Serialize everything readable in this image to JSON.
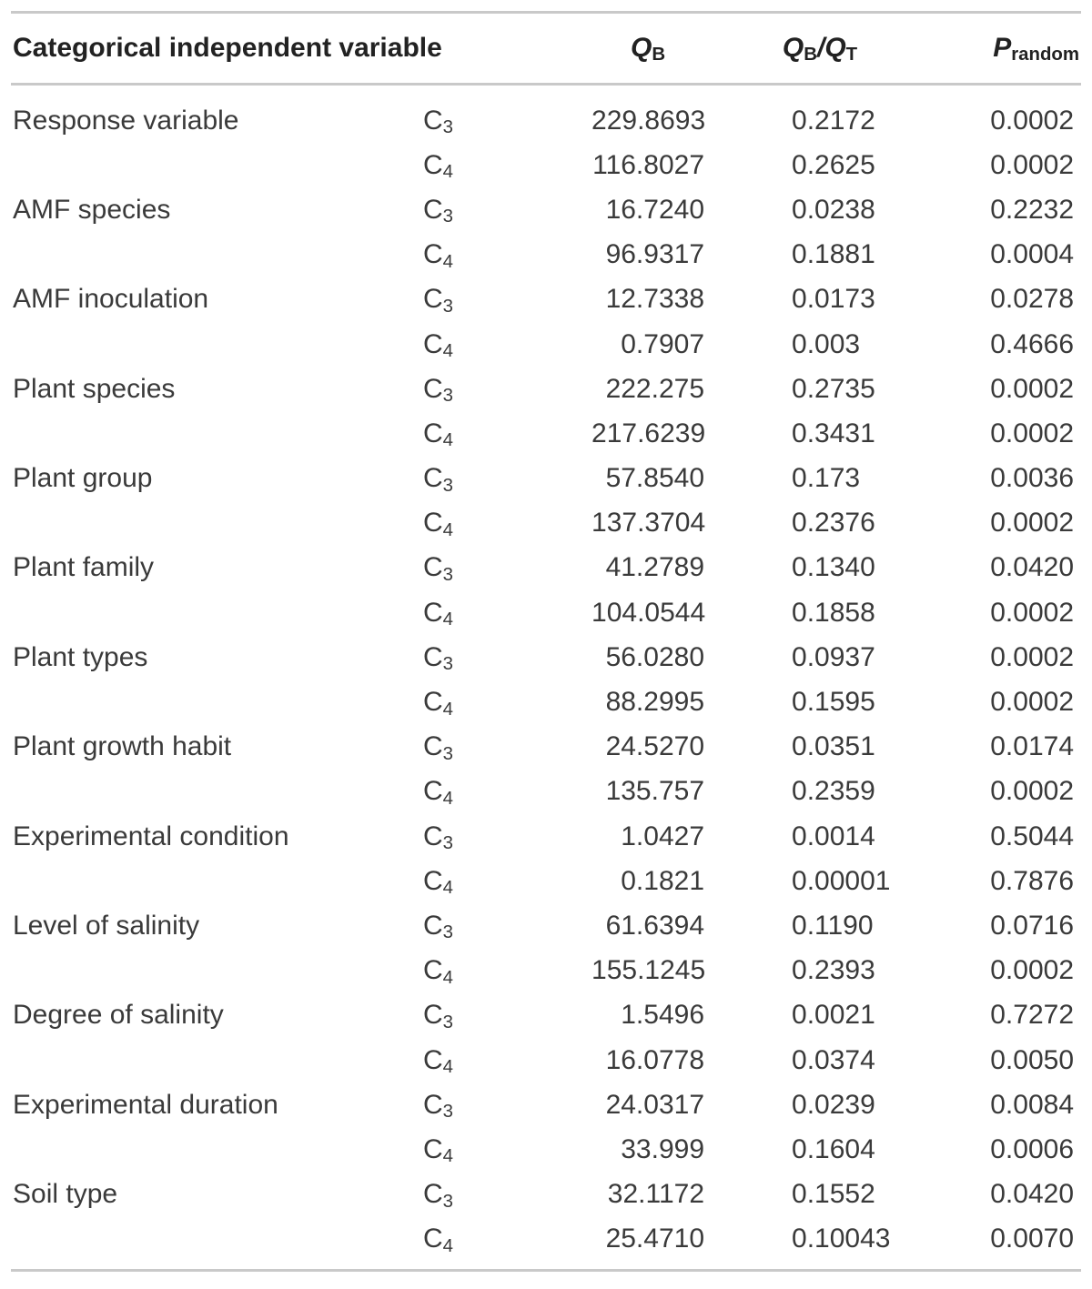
{
  "table": {
    "header": {
      "variable": "Categorical independent variable",
      "qb": {
        "base": "Q",
        "sub": "B"
      },
      "qb_qt": {
        "base1": "Q",
        "sub1": "B",
        "sep": "/",
        "base2": "Q",
        "sub2": "T"
      },
      "p": {
        "base": "P",
        "sub": "random"
      }
    },
    "rows": [
      {
        "variable": "Response variable",
        "group_base": "C",
        "group_sub": "3",
        "qb": "229.8693",
        "qb_qt": "0.2172",
        "p_random": "0.0002"
      },
      {
        "variable": "",
        "group_base": "C",
        "group_sub": "4",
        "qb": "116.8027",
        "qb_qt": "0.2625",
        "p_random": "0.0002"
      },
      {
        "variable": "AMF species",
        "group_base": "C",
        "group_sub": "3",
        "qb": "16.7240",
        "qb_qt": "0.0238",
        "p_random": "0.2232"
      },
      {
        "variable": "",
        "group_base": "C",
        "group_sub": "4",
        "qb": "96.9317",
        "qb_qt": "0.1881",
        "p_random": "0.0004"
      },
      {
        "variable": "AMF inoculation",
        "group_base": "C",
        "group_sub": "3",
        "qb": "12.7338",
        "qb_qt": "0.0173",
        "p_random": "0.0278"
      },
      {
        "variable": "",
        "group_base": "C",
        "group_sub": "4",
        "qb": "0.7907",
        "qb_qt": "0.003",
        "p_random": "0.4666"
      },
      {
        "variable": "Plant species",
        "group_base": "C",
        "group_sub": "3",
        "qb": "222.275",
        "qb_qt": "0.2735",
        "p_random": "0.0002"
      },
      {
        "variable": "",
        "group_base": "C",
        "group_sub": "4",
        "qb": "217.6239",
        "qb_qt": "0.3431",
        "p_random": "0.0002"
      },
      {
        "variable": "Plant group",
        "group_base": "C",
        "group_sub": "3",
        "qb": "57.8540",
        "qb_qt": "0.173",
        "p_random": "0.0036"
      },
      {
        "variable": "",
        "group_base": "C",
        "group_sub": "4",
        "qb": "137.3704",
        "qb_qt": "0.2376",
        "p_random": "0.0002"
      },
      {
        "variable": "Plant family",
        "group_base": "C",
        "group_sub": "3",
        "qb": "41.2789",
        "qb_qt": "0.1340",
        "p_random": "0.0420"
      },
      {
        "variable": "",
        "group_base": "C",
        "group_sub": "4",
        "qb": "104.0544",
        "qb_qt": "0.1858",
        "p_random": "0.0002"
      },
      {
        "variable": "Plant types",
        "group_base": "C",
        "group_sub": "3",
        "qb": "56.0280",
        "qb_qt": "0.0937",
        "p_random": "0.0002"
      },
      {
        "variable": "",
        "group_base": "C",
        "group_sub": "4",
        "qb": "88.2995",
        "qb_qt": "0.1595",
        "p_random": "0.0002"
      },
      {
        "variable": "Plant growth habit",
        "group_base": "C",
        "group_sub": "3",
        "qb": "24.5270",
        "qb_qt": "0.0351",
        "p_random": "0.0174"
      },
      {
        "variable": "",
        "group_base": "C",
        "group_sub": "4",
        "qb": "135.757",
        "qb_qt": "0.2359",
        "p_random": "0.0002"
      },
      {
        "variable": "Experimental condition",
        "group_base": "C",
        "group_sub": "3",
        "qb": "1.0427",
        "qb_qt": "0.0014",
        "p_random": "0.5044"
      },
      {
        "variable": "",
        "group_base": "C",
        "group_sub": "4",
        "qb": "0.1821",
        "qb_qt": "0.00001",
        "p_random": "0.7876"
      },
      {
        "variable": "Level of salinity",
        "group_base": "C",
        "group_sub": "3",
        "qb": "61.6394",
        "qb_qt": "0.1190",
        "p_random": "0.0716"
      },
      {
        "variable": "",
        "group_base": "C",
        "group_sub": "4",
        "qb": "155.1245",
        "qb_qt": "0.2393",
        "p_random": "0.0002"
      },
      {
        "variable": "Degree of salinity",
        "group_base": "C",
        "group_sub": "3",
        "qb": "1.5496",
        "qb_qt": "0.0021",
        "p_random": "0.7272"
      },
      {
        "variable": "",
        "group_base": "C",
        "group_sub": "4",
        "qb": "16.0778",
        "qb_qt": "0.0374",
        "p_random": "0.0050"
      },
      {
        "variable": "Experimental duration",
        "group_base": "C",
        "group_sub": "3",
        "qb": "24.0317",
        "qb_qt": "0.0239",
        "p_random": "0.0084"
      },
      {
        "variable": "",
        "group_base": "C",
        "group_sub": "4",
        "qb": "33.999",
        "qb_qt": "0.1604",
        "p_random": "0.0006"
      },
      {
        "variable": "Soil type",
        "group_base": "C",
        "group_sub": "3",
        "qb": "32.1172",
        "qb_qt": "0.1552",
        "p_random": "0.0420"
      },
      {
        "variable": "",
        "group_base": "C",
        "group_sub": "4",
        "qb": "25.4710",
        "qb_qt": "0.10043",
        "p_random": "0.0070"
      }
    ]
  },
  "colors": {
    "background": "#ffffff",
    "text": "#3a3a3a",
    "header_text": "#222222",
    "rule": "#c9c9c9"
  }
}
